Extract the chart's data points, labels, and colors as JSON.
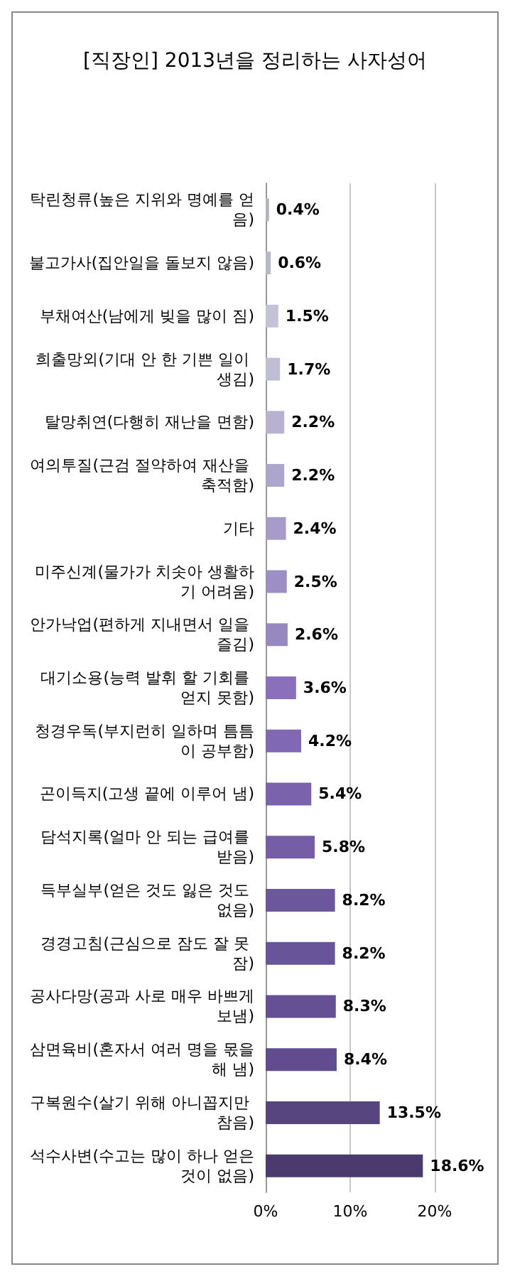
{
  "chart_data": {
    "type": "bar",
    "orientation": "horizontal",
    "title": "[직장인] 2013년을 정리하는 사자성어",
    "categories": [
      "탁린청류(높은 지위와 명예를 얻음)",
      "불고가사(집안일을 돌보지 않음)",
      "부채여산(남에게 빚을 많이 짐)",
      "희출망외(기대 안 한 기쁜 일이 생김)",
      "탈망취연(다행히 재난을 면함)",
      "여의투질(근검 절약하여 재산을 축적함)",
      "기타",
      "미주신계(물가가 치솟아 생활하기 어려움)",
      "안가낙업(편하게 지내면서 일을 즐김)",
      "대기소용(능력 발휘 할 기회를 얻지 못함)",
      "청경우독(부지런히 일하며 틈틈이 공부함)",
      "곤이득지(고생 끝에 이루어 냄)",
      "담석지록(얼마 안 되는 급여를 받음)",
      "득부실부(얻은 것도 잃은 것도 없음)",
      "경경고침(근심으로 잠도 잘 못 잠)",
      "공사다망(공과 사로 매우 바쁘게 보냄)",
      "삼면육비(혼자서 여러 명을 몫을 해 냄)",
      "구복원수(살기 위해 아니꼽지만 참음)",
      "석수사변(수고는 많이 하나 얻은 것이 없음)"
    ],
    "values": [
      0.4,
      0.6,
      1.5,
      1.7,
      2.2,
      2.2,
      2.4,
      2.5,
      2.6,
      3.6,
      4.2,
      5.4,
      5.8,
      8.2,
      8.2,
      8.3,
      8.4,
      13.5,
      18.6
    ],
    "value_labels": [
      "0.4%",
      "0.6%",
      "1.5%",
      "1.7%",
      "2.2%",
      "2.2%",
      "2.4%",
      "2.5%",
      "2.6%",
      "3.6%",
      "4.2%",
      "5.4%",
      "5.8%",
      "8.2%",
      "8.2%",
      "8.3%",
      "8.4%",
      "13.5%",
      "18.6%"
    ],
    "colors": [
      "#b4b4bc",
      "#b8b8c4",
      "#c4c2d6",
      "#c0bed4",
      "#b8b2d0",
      "#ada6cc",
      "#a79cc9",
      "#9d8fc4",
      "#9888c0",
      "#8a6fbc",
      "#8068b4",
      "#7a62ad",
      "#755ea6",
      "#6c579c",
      "#685498",
      "#645093",
      "#604c8e",
      "#574580",
      "#4a3a6e"
    ],
    "xlim": [
      0,
      20
    ],
    "xticks": [
      {
        "value": 0,
        "label": "0%"
      },
      {
        "value": 10,
        "label": "10%"
      },
      {
        "value": 20,
        "label": "20%"
      }
    ],
    "grid": "x"
  }
}
